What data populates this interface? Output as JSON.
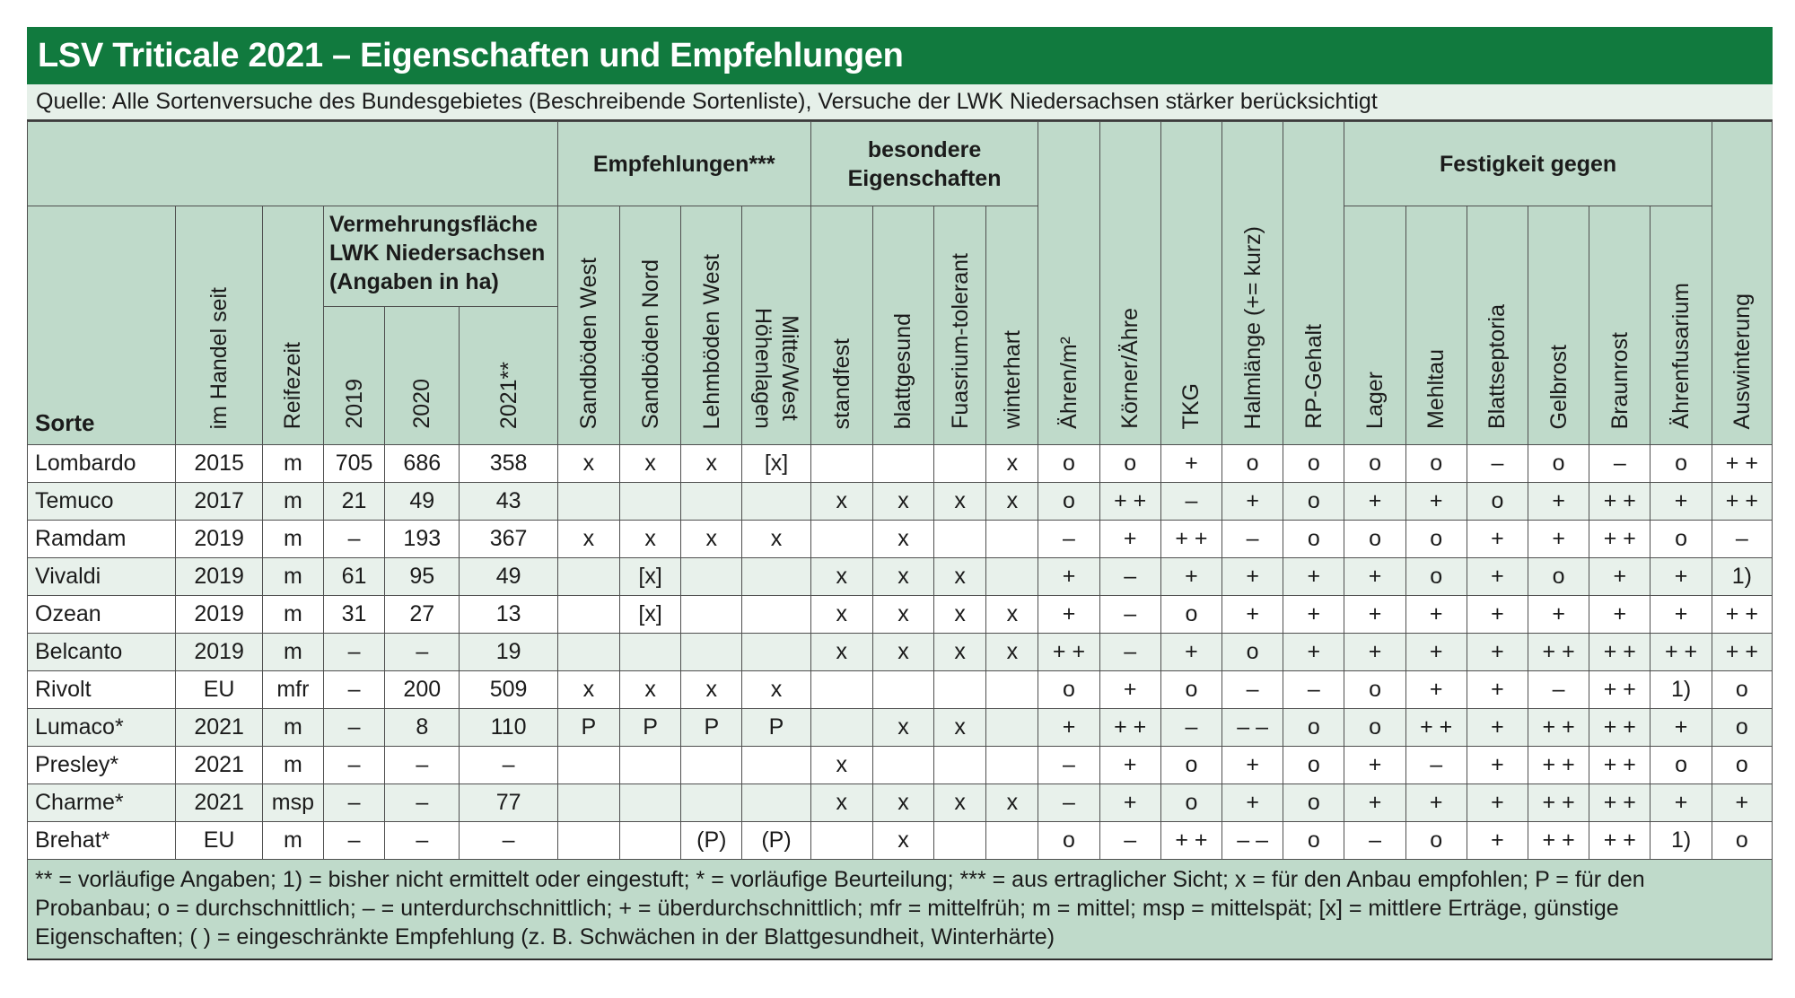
{
  "title": "LSV Triticale 2021 – Eigenschaften und Empfehlungen",
  "source": "Quelle: Alle Sortenversuche des Bundesgebietes (Beschreibende Sortenliste), Versuche der LWK Niedersachsen stärker berücksichtigt",
  "header": {
    "group_empfehlungen": "Empfehlungen***",
    "group_besondere": "besondere Eigenschaften",
    "group_festigkeit": "Festigkeit gegen",
    "sorte": "Sorte",
    "im_handel": "im Handel seit",
    "reifezeit": "Reifezeit",
    "vermehrung_l1": "Vermehrungsfläche",
    "vermehrung_l2": "LWK Niedersachsen",
    "vermehrung_l3": "(Angaben in ha)",
    "y2019": "2019",
    "y2020": "2020",
    "y2021": "2021**",
    "sandboeden_west": "Sandböden West",
    "sandboeden_nord": "Sandböden Nord",
    "lehmboeden_west": "Lehmböden West",
    "hoehenlagen_l1": "Höhenlagen",
    "hoehenlagen_l2": "Mitte/West",
    "standfest": "standfest",
    "blattgesund": "blattgesund",
    "fusarium": "Fuasrium-tolerant",
    "winterhart": "winterhart",
    "aehren": "Ähren/m²",
    "koerner": "Körner/Ähre",
    "tkg": "TKG",
    "halmlaenge": "Halmlänge (+= kurz)",
    "rp": "RP-Gehalt",
    "lager": "Lager",
    "mehltau": "Mehltau",
    "blattseptoria": "Blattseptoria",
    "gelbrost": "Gelbrost",
    "braunrost": "Braunrost",
    "aehrenfusarium": "Ährenfusarium",
    "auswinterung": "Auswinterung"
  },
  "rows": [
    [
      "Lombardo",
      "2015",
      "m",
      "705",
      "686",
      "358",
      "x",
      "x",
      "x",
      "[x]",
      "",
      "",
      "",
      "x",
      "o",
      "o",
      "+",
      "o",
      "o",
      "o",
      "o",
      "–",
      "o",
      "–",
      "o",
      "+ +"
    ],
    [
      "Temuco",
      "2017",
      "m",
      "21",
      "49",
      "43",
      "",
      "",
      "",
      "",
      "x",
      "x",
      "x",
      "x",
      "o",
      "+ +",
      "–",
      "+",
      "o",
      "+",
      "+",
      "o",
      "+",
      "+ +",
      "+",
      "+ +"
    ],
    [
      "Ramdam",
      "2019",
      "m",
      "–",
      "193",
      "367",
      "x",
      "x",
      "x",
      "x",
      "",
      "x",
      "",
      "",
      "–",
      "+",
      "+ +",
      "–",
      "o",
      "o",
      "o",
      "+",
      "+",
      "+ +",
      "o",
      "–"
    ],
    [
      "Vivaldi",
      "2019",
      "m",
      "61",
      "95",
      "49",
      "",
      "[x]",
      "",
      "",
      "x",
      "x",
      "x",
      "",
      "+",
      "–",
      "+",
      "+",
      "+",
      "+",
      "o",
      "+",
      "o",
      "+",
      "+",
      "1)"
    ],
    [
      "Ozean",
      "2019",
      "m",
      "31",
      "27",
      "13",
      "",
      "[x]",
      "",
      "",
      "x",
      "x",
      "x",
      "x",
      "+",
      "–",
      "o",
      "+",
      "+",
      "+",
      "+",
      "+",
      "+",
      "+",
      "+",
      "+ +"
    ],
    [
      "Belcanto",
      "2019",
      "m",
      "–",
      "–",
      "19",
      "",
      "",
      "",
      "",
      "x",
      "x",
      "x",
      "x",
      "+ +",
      "–",
      "+",
      "o",
      "+",
      "+",
      "+",
      "+",
      "+ +",
      "+ +",
      "+ +",
      "+ +"
    ],
    [
      "Rivolt",
      "EU",
      "mfr",
      "–",
      "200",
      "509",
      "x",
      "x",
      "x",
      "x",
      "",
      "",
      "",
      "",
      "o",
      "+",
      "o",
      "–",
      "–",
      "o",
      "+",
      "+",
      "–",
      "+ +",
      "1)",
      "o"
    ],
    [
      "Lumaco*",
      "2021",
      "m",
      "–",
      "8",
      "110",
      "P",
      "P",
      "P",
      "P",
      "",
      "x",
      "x",
      "",
      "+",
      "+ +",
      "–",
      "– –",
      "o",
      "o",
      "+ +",
      "+",
      "+ +",
      "+ +",
      "+",
      "o"
    ],
    [
      "Presley*",
      "2021",
      "m",
      "–",
      "–",
      "–",
      "",
      "",
      "",
      "",
      "x",
      "",
      "",
      "",
      "–",
      "+",
      "o",
      "+",
      "o",
      "+",
      "–",
      "+",
      "+ +",
      "+ +",
      "o",
      "o"
    ],
    [
      "Charme*",
      "2021",
      "msp",
      "–",
      "–",
      "77",
      "",
      "",
      "",
      "",
      "x",
      "x",
      "x",
      "x",
      "–",
      "+",
      "o",
      "+",
      "o",
      "+",
      "+",
      "+",
      "+ +",
      "+ +",
      "+",
      "+"
    ],
    [
      "Brehat*",
      "EU",
      "m",
      "–",
      "–",
      "–",
      "",
      "",
      "(P)",
      "(P)",
      "",
      "x",
      "",
      "",
      "o",
      "–",
      "+ +",
      "– –",
      "o",
      "–",
      "o",
      "+",
      "+ +",
      "+ +",
      "1)",
      "o"
    ]
  ],
  "footnote": "** = vorläufige Angaben; 1) = bisher nicht ermittelt oder eingestuft; * = vorläufige Beurteilung; *** = aus ertraglicher Sicht; x = für den Anbau empfohlen; P = für den Probanbau; o = durchschnittlich; – = unterdurchschnittlich; + = überdurchschnittlich; mfr = mittelfrüh; m = mittel; msp = mittelspät; [x] = mittlere Erträge, günstige Eigenschaften; ( ) = eingeschränkte Empfehlung (z. B. Schwächen in der Blattgesundheit, Winterhärte)"
}
